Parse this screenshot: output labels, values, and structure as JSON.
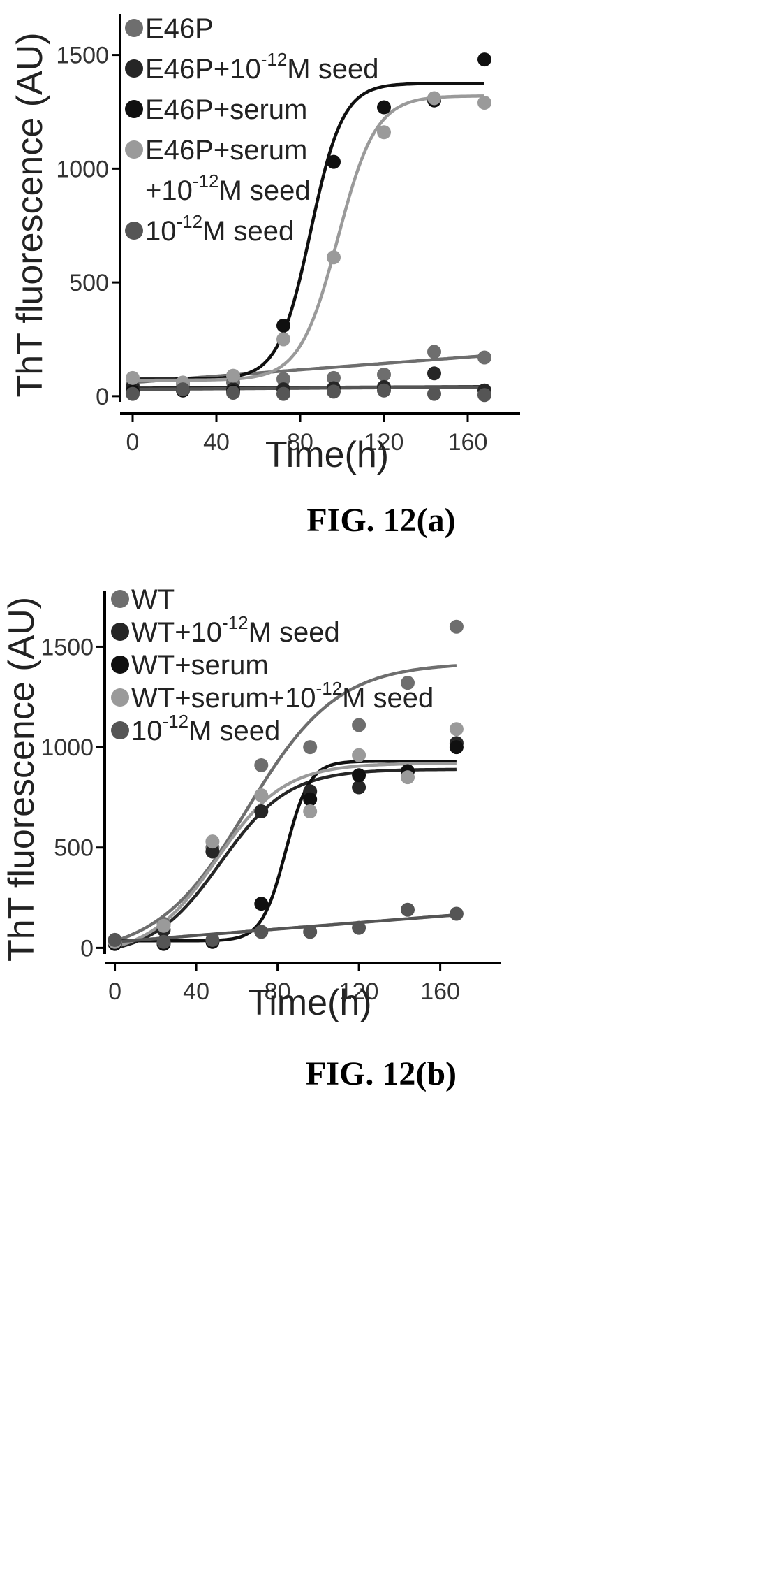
{
  "chart_data": [
    {
      "type": "scatter",
      "caption": "FIG. 12(a)",
      "xlabel": "Time(h)",
      "ylabel": "ThT fluorescence (AU)",
      "xlim": [
        -6,
        185
      ],
      "ylim": [
        -25,
        1680
      ],
      "xticks": [
        "0",
        "40",
        "80",
        "120",
        "160"
      ],
      "yticks": [
        "0",
        "500",
        "1000",
        "1500"
      ],
      "legend_position": "top-left",
      "legend": [
        {
          "lines": [
            [
              "E46P",
              "",
              ""
            ]
          ]
        },
        {
          "lines": [
            [
              "E46P+10",
              "-12",
              "M seed"
            ]
          ]
        },
        {
          "lines": [
            [
              "E46P+serum",
              "",
              ""
            ]
          ]
        },
        {
          "lines": [
            [
              "E46P+serum",
              "",
              ""
            ],
            [
              " +10",
              "-12",
              "M seed"
            ]
          ]
        },
        {
          "lines": [
            [
              "10",
              "-12",
              "M seed"
            ]
          ]
        }
      ],
      "series": [
        {
          "name": "E46P",
          "color": "#6e6e6e",
          "x": [
            0,
            24,
            48,
            72,
            96,
            120,
            144,
            168
          ],
          "y": [
            50,
            55,
            60,
            75,
            80,
            95,
            195,
            170
          ],
          "fit": {
            "kind": "linear",
            "a": 60,
            "b": 0.7
          }
        },
        {
          "name": "E46P+10-12M seed",
          "color": "#262626",
          "x": [
            0,
            24,
            48,
            72,
            96,
            120,
            144,
            168
          ],
          "y": [
            40,
            35,
            30,
            30,
            35,
            40,
            100,
            25
          ],
          "fit": {
            "kind": "linear",
            "a": 35,
            "b": 0.04
          }
        },
        {
          "name": "E46P+serum",
          "color": "#101010",
          "x": [
            0,
            24,
            48,
            72,
            96,
            120,
            144,
            168
          ],
          "y": [
            20,
            25,
            20,
            310,
            1030,
            1270,
            1300,
            1480
          ],
          "fit": {
            "kind": "sigmoid",
            "base": 75,
            "top": 1375,
            "x0": 85,
            "k": 0.13
          }
        },
        {
          "name": "E46P+serum+10-12M seed",
          "color": "#9a9a9a",
          "x": [
            0,
            24,
            48,
            72,
            96,
            120,
            144,
            168
          ],
          "y": [
            80,
            60,
            90,
            250,
            610,
            1160,
            1310,
            1290
          ],
          "fit": {
            "kind": "sigmoid",
            "base": 70,
            "top": 1320,
            "x0": 98,
            "k": 0.11
          }
        },
        {
          "name": "10-12M seed",
          "color": "#555555",
          "x": [
            0,
            24,
            48,
            72,
            96,
            120,
            144,
            168
          ],
          "y": [
            10,
            30,
            15,
            10,
            20,
            25,
            10,
            5
          ],
          "fit": {
            "kind": "linear",
            "a": 30,
            "b": 0.06
          }
        }
      ]
    },
    {
      "type": "scatter",
      "caption": "FIG. 12(b)",
      "xlabel": "Time(h)",
      "ylabel": "ThT fluorescence (AU)",
      "xlim": [
        -5,
        190
      ],
      "ylim": [
        -30,
        1780
      ],
      "xticks": [
        "0",
        "40",
        "80",
        "120",
        "160"
      ],
      "yticks": [
        "0",
        "500",
        "1000",
        "1500"
      ],
      "legend_position": "top-left",
      "legend": [
        {
          "lines": [
            [
              "WT",
              "",
              ""
            ]
          ]
        },
        {
          "lines": [
            [
              "WT+10",
              "-12",
              "M seed"
            ]
          ]
        },
        {
          "lines": [
            [
              "WT+serum",
              "",
              ""
            ]
          ]
        },
        {
          "lines": [
            [
              "WT+serum+10",
              "-12",
              "M seed"
            ]
          ]
        },
        {
          "lines": [
            [
              "10",
              "-12",
              "M seed"
            ]
          ]
        }
      ],
      "series": [
        {
          "name": "WT",
          "color": "#6e6e6e",
          "x": [
            0,
            24,
            48,
            72,
            96,
            120,
            144,
            168
          ],
          "y": [
            20,
            120,
            500,
            910,
            1000,
            1110,
            1320,
            1600
          ],
          "fit": {
            "kind": "sigmoid",
            "base": -40,
            "top": 1420,
            "x0": 65,
            "k": 0.045
          }
        },
        {
          "name": "WT+10-12M seed",
          "color": "#262626",
          "x": [
            0,
            24,
            48,
            72,
            96,
            120,
            144,
            168
          ],
          "y": [
            30,
            90,
            480,
            680,
            780,
            800,
            880,
            1020
          ],
          "fit": {
            "kind": "sigmoid",
            "base": -40,
            "top": 890,
            "x0": 52,
            "k": 0.06
          }
        },
        {
          "name": "WT+serum",
          "color": "#101010",
          "x": [
            0,
            24,
            48,
            72,
            96,
            120,
            144,
            168
          ],
          "y": [
            20,
            20,
            30,
            220,
            740,
            860,
            880,
            1000
          ],
          "fit": {
            "kind": "sigmoid",
            "base": 35,
            "top": 930,
            "x0": 84,
            "k": 0.17
          }
        },
        {
          "name": "WT+serum+10-12M seed",
          "color": "#9a9a9a",
          "x": [
            0,
            24,
            48,
            72,
            96,
            120,
            144,
            168
          ],
          "y": [
            30,
            110,
            530,
            760,
            680,
            960,
            850,
            1090
          ],
          "fit": {
            "kind": "sigmoid",
            "base": -40,
            "top": 920,
            "x0": 50,
            "k": 0.06
          }
        },
        {
          "name": "10-12M seed",
          "color": "#555555",
          "x": [
            0,
            24,
            48,
            72,
            96,
            120,
            144,
            168
          ],
          "y": [
            40,
            30,
            40,
            80,
            80,
            100,
            190,
            170
          ],
          "fit": {
            "kind": "linear",
            "a": 30,
            "b": 0.8
          }
        }
      ]
    }
  ]
}
